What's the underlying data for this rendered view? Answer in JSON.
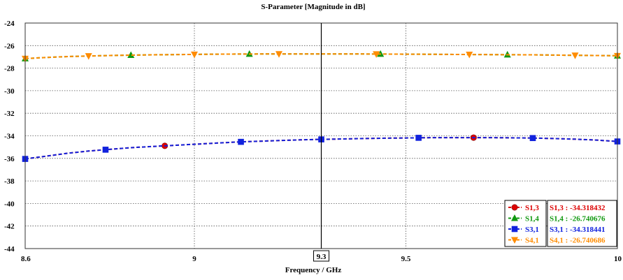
{
  "chart_data": {
    "type": "line",
    "title": "S-Parameter [Magnitude in dB]",
    "xlabel": "Frequency / GHz",
    "ylabel": "",
    "xlim": [
      8.6,
      10
    ],
    "ylim": [
      -44,
      -24
    ],
    "x_ticks": [
      8.6,
      9,
      9.5,
      10
    ],
    "y_ticks": [
      -24,
      -26,
      -28,
      -30,
      -32,
      -34,
      -36,
      -38,
      -40,
      -42,
      -44
    ],
    "grid": true,
    "legend_position": "bottom-right",
    "marker_line": {
      "x": 9.3,
      "label": "9.3"
    },
    "x": [
      8.6,
      8.65,
      8.7,
      8.75,
      8.8,
      8.85,
      8.9,
      8.95,
      9.0,
      9.05,
      9.1,
      9.15,
      9.2,
      9.25,
      9.3,
      9.35,
      9.4,
      9.45,
      9.5,
      9.55,
      9.6,
      9.65,
      9.7,
      9.75,
      9.8,
      9.85,
      9.9,
      9.95,
      10.0
    ],
    "series": [
      {
        "name": "S1,3",
        "color": "#dd0000",
        "marker": "circle",
        "values": [
          -36.05,
          -35.8,
          -35.55,
          -35.35,
          -35.2,
          -35.05,
          -34.95,
          -34.85,
          -34.75,
          -34.65,
          -34.55,
          -34.48,
          -34.42,
          -34.36,
          -34.318432,
          -34.28,
          -34.24,
          -34.21,
          -34.19,
          -34.17,
          -34.16,
          -34.16,
          -34.16,
          -34.18,
          -34.2,
          -34.24,
          -34.3,
          -34.38,
          -34.5
        ],
        "marker_x": [
          8.93,
          9.66
        ]
      },
      {
        "name": "S1,4",
        "color": "#119911",
        "marker": "triangle-up",
        "values": [
          -27.15,
          -27.05,
          -26.97,
          -26.92,
          -26.88,
          -26.85,
          -26.82,
          -26.8,
          -26.78,
          -26.76,
          -26.75,
          -26.745,
          -26.742,
          -26.741,
          -26.740676,
          -26.742,
          -26.745,
          -26.75,
          -26.76,
          -26.77,
          -26.78,
          -26.79,
          -26.8,
          -26.81,
          -26.82,
          -26.84,
          -26.86,
          -26.88,
          -26.9
        ],
        "marker_x": [
          8.6,
          8.85,
          9.13,
          9.44,
          9.74,
          10.0
        ]
      },
      {
        "name": "S3,1",
        "color": "#1122dd",
        "marker": "square",
        "values": [
          -36.05,
          -35.8,
          -35.55,
          -35.35,
          -35.2,
          -35.05,
          -34.95,
          -34.85,
          -34.75,
          -34.65,
          -34.55,
          -34.48,
          -34.42,
          -34.36,
          -34.318441,
          -34.28,
          -34.24,
          -34.21,
          -34.19,
          -34.17,
          -34.16,
          -34.16,
          -34.16,
          -34.18,
          -34.2,
          -34.24,
          -34.3,
          -34.38,
          -34.5
        ],
        "marker_x": [
          8.6,
          8.79,
          9.11,
          9.3,
          9.53,
          9.8,
          10.0
        ]
      },
      {
        "name": "S4,1",
        "color": "#ff8c00",
        "marker": "triangle-down",
        "values": [
          -27.15,
          -27.05,
          -26.97,
          -26.92,
          -26.88,
          -26.85,
          -26.82,
          -26.8,
          -26.78,
          -26.76,
          -26.75,
          -26.745,
          -26.742,
          -26.741,
          -26.740686,
          -26.742,
          -26.745,
          -26.75,
          -26.76,
          -26.77,
          -26.78,
          -26.79,
          -26.8,
          -26.81,
          -26.82,
          -26.84,
          -26.86,
          -26.88,
          -26.9
        ],
        "marker_x": [
          8.6,
          8.75,
          9.0,
          9.2,
          9.43,
          9.65,
          9.9,
          10.0
        ]
      }
    ],
    "readout": [
      {
        "text": "S1,3 : -34.318432",
        "color": "#dd0000"
      },
      {
        "text": "S1,4 : -26.740676",
        "color": "#119911"
      },
      {
        "text": "S3,1 : -34.318441",
        "color": "#1122dd"
      },
      {
        "text": "S4,1 : -26.740686",
        "color": "#ff8c00"
      }
    ]
  }
}
